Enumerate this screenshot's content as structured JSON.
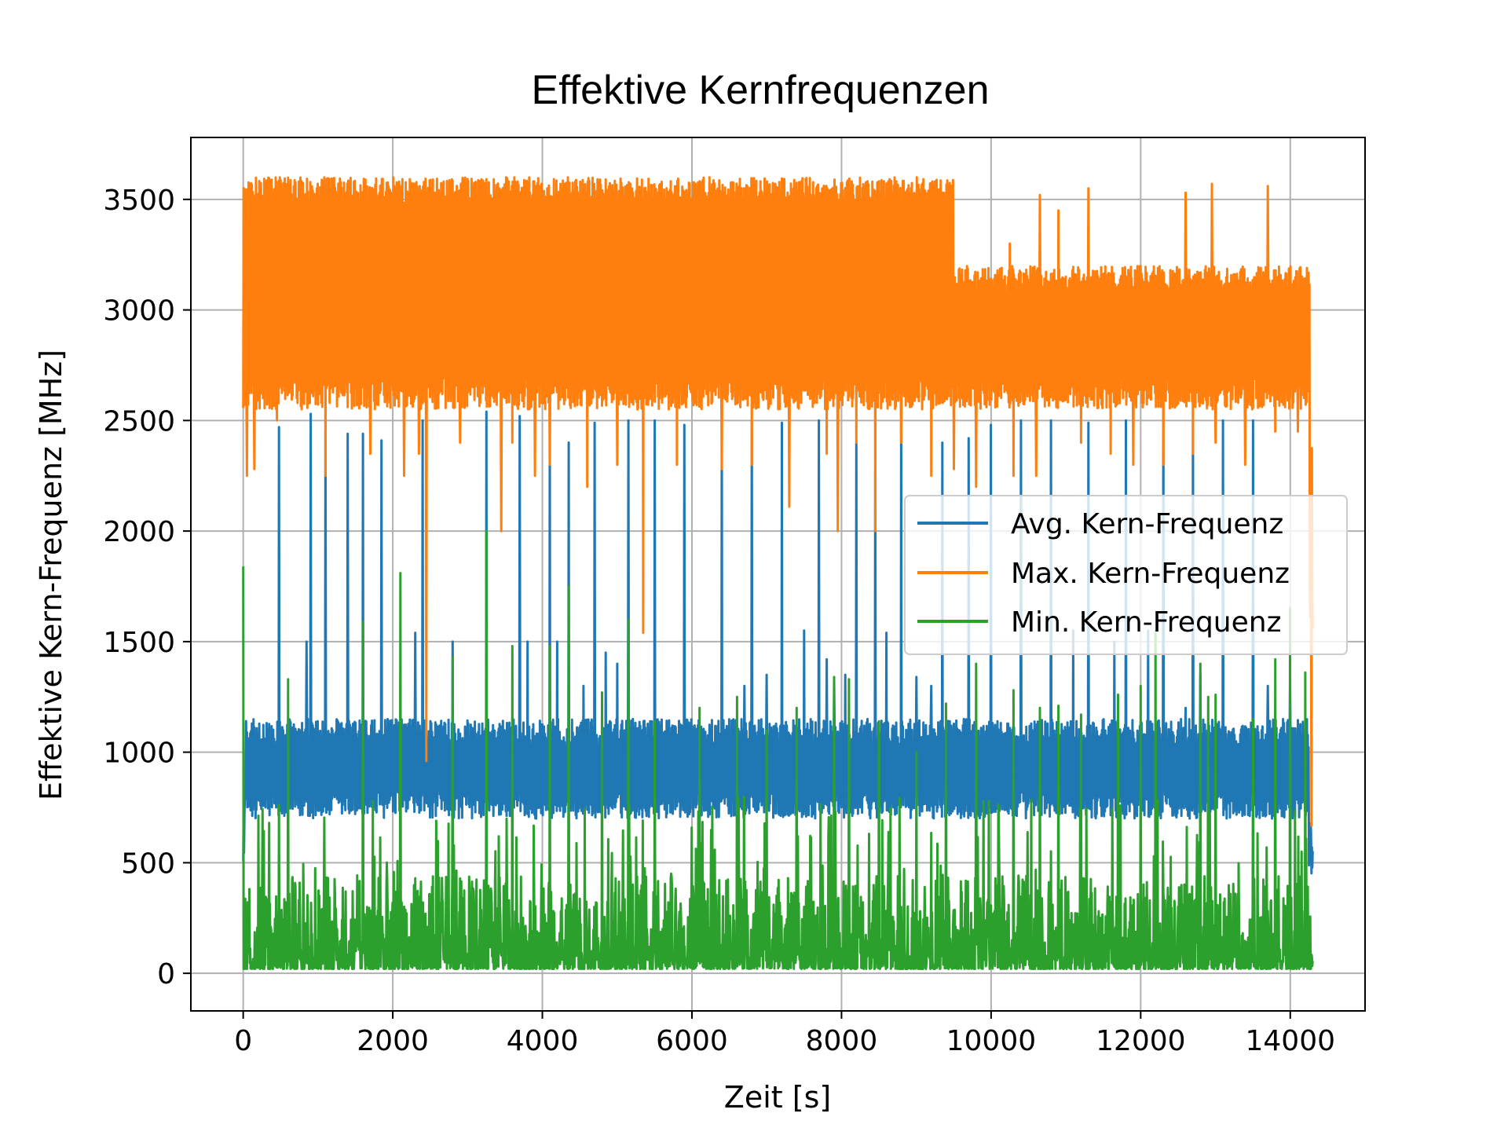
{
  "chart_data": {
    "type": "line",
    "title": "Effektive Kernfrequenzen",
    "xlabel": "Zeit [s]",
    "ylabel": "Effektive Kern-Frequenz [MHz]",
    "xlim": [
      -700,
      15000
    ],
    "ylim": [
      -170,
      3780
    ],
    "xticks": [
      0,
      2000,
      4000,
      6000,
      8000,
      10000,
      12000,
      14000
    ],
    "yticks": [
      0,
      500,
      1000,
      1500,
      2000,
      2500,
      3000,
      3500
    ],
    "grid": true,
    "legend_position": "center-right",
    "series": [
      {
        "name": "Avg. Kern-Frequenz",
        "color": "#1f77b4",
        "x": [
          0,
          500,
          1000,
          1500,
          2000,
          2500,
          3000,
          3500,
          4000,
          4500,
          5000,
          5500,
          6000,
          6500,
          7000,
          7500,
          8000,
          8500,
          9000,
          9500,
          10000,
          10500,
          11000,
          11500,
          12000,
          12500,
          13000,
          13500,
          14000,
          14300
        ],
        "values": [
          950,
          930,
          940,
          960,
          950,
          945,
          955,
          950,
          940,
          960,
          945,
          930,
          950,
          955,
          960,
          950,
          940,
          935,
          920,
          920,
          925,
          920,
          930,
          925,
          930,
          935,
          940,
          935,
          940,
          430
        ],
        "band": [
          700,
          1150
        ],
        "spikes": [
          [
            480,
            2470
          ],
          [
            850,
            1500
          ],
          [
            900,
            2530
          ],
          [
            1100,
            2450
          ],
          [
            1400,
            2440
          ],
          [
            1600,
            2440
          ],
          [
            1850,
            2410
          ],
          [
            2300,
            1540
          ],
          [
            2400,
            2500
          ],
          [
            2800,
            1500
          ],
          [
            3250,
            2540
          ],
          [
            3700,
            2520
          ],
          [
            3800,
            1500
          ],
          [
            4100,
            2480
          ],
          [
            4200,
            1500
          ],
          [
            4350,
            2400
          ],
          [
            4550,
            1300
          ],
          [
            4700,
            2490
          ],
          [
            4850,
            1450
          ],
          [
            5000,
            1400
          ],
          [
            5150,
            2500
          ],
          [
            5500,
            2500
          ],
          [
            5900,
            2480
          ],
          [
            6400,
            2500
          ],
          [
            6700,
            1300
          ],
          [
            6800,
            2500
          ],
          [
            7000,
            1350
          ],
          [
            7200,
            2490
          ],
          [
            7500,
            1550
          ],
          [
            7700,
            2500
          ],
          [
            7800,
            1420
          ],
          [
            7900,
            1320
          ],
          [
            8050,
            1350
          ],
          [
            8200,
            2400
          ],
          [
            8450,
            2270
          ],
          [
            8600,
            1540
          ],
          [
            8800,
            2500
          ],
          [
            9000,
            1340
          ],
          [
            9200,
            1300
          ],
          [
            9350,
            2400
          ],
          [
            9700,
            2420
          ],
          [
            10000,
            2480
          ],
          [
            10400,
            2500
          ],
          [
            10800,
            2500
          ],
          [
            11100,
            1550
          ],
          [
            11300,
            2490
          ],
          [
            11650,
            1500
          ],
          [
            11800,
            2500
          ],
          [
            12100,
            1550
          ],
          [
            12300,
            2500
          ],
          [
            12600,
            1200
          ],
          [
            12700,
            2500
          ],
          [
            12800,
            1350
          ],
          [
            13100,
            2500
          ],
          [
            13500,
            2500
          ],
          [
            13700,
            1300
          ],
          [
            14000,
            1300
          ]
        ]
      },
      {
        "name": "Max. Kern-Frequenz",
        "color": "#ff7f0e",
        "x": [
          0,
          500,
          1000,
          1500,
          2000,
          2500,
          3000,
          3500,
          4000,
          4500,
          5000,
          5500,
          6000,
          6500,
          7000,
          7500,
          8000,
          8500,
          9000,
          9500,
          10000,
          10500,
          11000,
          11500,
          12000,
          12500,
          13000,
          13500,
          14000,
          14300
        ],
        "values": [
          3000,
          3050,
          3050,
          3050,
          3050,
          3050,
          3050,
          3050,
          3050,
          3050,
          3050,
          3050,
          3050,
          3050,
          3050,
          3050,
          3050,
          3050,
          3050,
          3050,
          2850,
          2850,
          2850,
          2850,
          2850,
          2850,
          2850,
          2850,
          2850,
          700
        ],
        "band_early": [
          2550,
          3600
        ],
        "band_late": [
          2550,
          3200
        ],
        "dips": [
          [
            50,
            2250
          ],
          [
            150,
            2280
          ],
          [
            450,
            2500
          ],
          [
            1100,
            2250
          ],
          [
            1700,
            2350
          ],
          [
            2150,
            2250
          ],
          [
            2350,
            2350
          ],
          [
            2450,
            960
          ],
          [
            2900,
            2400
          ],
          [
            3450,
            2000
          ],
          [
            3600,
            2400
          ],
          [
            3900,
            2250
          ],
          [
            4100,
            2300
          ],
          [
            4600,
            2200
          ],
          [
            5000,
            2300
          ],
          [
            5350,
            1540
          ],
          [
            5800,
            2300
          ],
          [
            6400,
            2280
          ],
          [
            6800,
            2300
          ],
          [
            7300,
            2110
          ],
          [
            7800,
            2350
          ],
          [
            7950,
            2000
          ],
          [
            8200,
            2400
          ],
          [
            8450,
            2000
          ],
          [
            8800,
            2400
          ],
          [
            9200,
            2250
          ],
          [
            9500,
            2280
          ],
          [
            9800,
            2200
          ],
          [
            10300,
            2250
          ],
          [
            10600,
            2250
          ],
          [
            11200,
            2400
          ],
          [
            11600,
            2350
          ],
          [
            11900,
            2300
          ],
          [
            12300,
            2300
          ],
          [
            12700,
            2350
          ],
          [
            13000,
            2400
          ],
          [
            13400,
            2300
          ],
          [
            13800,
            2450
          ],
          [
            14100,
            2450
          ]
        ],
        "peaks": [
          [
            10250,
            3300
          ],
          [
            10650,
            3520
          ],
          [
            10900,
            3450
          ],
          [
            11300,
            3550
          ],
          [
            11900,
            3560
          ],
          [
            12600,
            3530
          ],
          [
            12950,
            3570
          ],
          [
            13700,
            3560
          ],
          [
            14100,
            3410
          ]
        ]
      },
      {
        "name": "Min. Kern-Frequenz",
        "color": "#2ca02c",
        "x": [
          0,
          500,
          1000,
          1500,
          2000,
          2500,
          3000,
          3500,
          4000,
          4500,
          5000,
          5500,
          6000,
          6500,
          7000,
          7500,
          8000,
          8500,
          9000,
          9500,
          10000,
          10500,
          11000,
          11500,
          12000,
          12500,
          13000,
          13500,
          14000,
          14300
        ],
        "values": [
          60,
          200,
          150,
          180,
          190,
          170,
          200,
          180,
          190,
          160,
          200,
          150,
          110,
          170,
          160,
          180,
          190,
          170,
          140,
          160,
          200,
          210,
          190,
          200,
          180,
          190,
          210,
          180,
          220,
          50
        ],
        "peaks": [
          [
            0,
            1840
          ],
          [
            600,
            1330
          ],
          [
            1600,
            1590
          ],
          [
            2100,
            1810
          ],
          [
            2800,
            1430
          ],
          [
            3250,
            2000
          ],
          [
            3600,
            1480
          ],
          [
            4100,
            1480
          ],
          [
            4350,
            1750
          ],
          [
            4800,
            1270
          ],
          [
            5150,
            1600
          ],
          [
            5500,
            1140
          ],
          [
            6100,
            1200
          ],
          [
            6600,
            1250
          ],
          [
            7000,
            1100
          ],
          [
            7400,
            1200
          ],
          [
            7900,
            1340
          ],
          [
            8100,
            1330
          ],
          [
            8500,
            1140
          ],
          [
            9000,
            1000
          ],
          [
            9400,
            1220
          ],
          [
            9800,
            1400
          ],
          [
            10300,
            1280
          ],
          [
            10650,
            1200
          ],
          [
            10900,
            1210
          ],
          [
            11200,
            1170
          ],
          [
            11700,
            1260
          ],
          [
            12000,
            1300
          ],
          [
            12200,
            1550
          ],
          [
            12800,
            1400
          ],
          [
            12900,
            1250
          ],
          [
            13000,
            1260
          ],
          [
            13500,
            1150
          ],
          [
            13800,
            1420
          ],
          [
            14000,
            1650
          ],
          [
            14200,
            1360
          ]
        ]
      }
    ]
  }
}
